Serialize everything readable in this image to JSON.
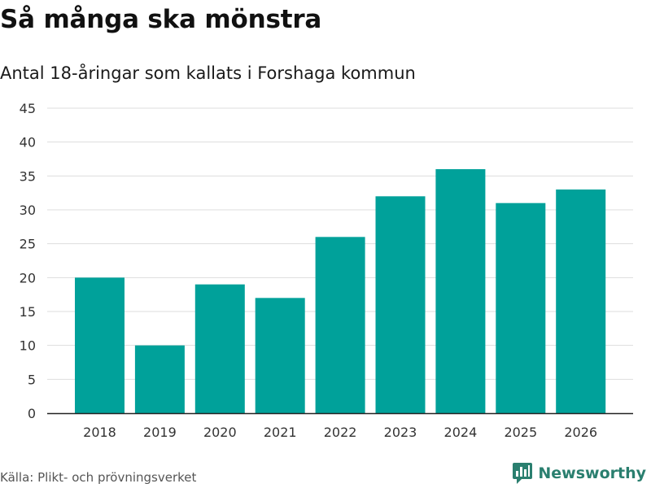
{
  "header": {
    "title": "Så många ska mönstra",
    "subtitle": "Antal 18-åringar som kallats i Forshaga kommun"
  },
  "footer": {
    "source": "Källa: Plikt- och prövningsverket",
    "brand": "Newsworthy"
  },
  "colors": {
    "bar": "#00a19a",
    "grid": "#dddddd",
    "axis": "#222222",
    "brand": "#2a7f6f"
  },
  "icons": {
    "brand_logo": "bar-chart-speech-bubble-icon"
  },
  "chart_data": {
    "type": "bar",
    "title": "Så många ska mönstra",
    "subtitle": "Antal 18-åringar som kallats i Forshaga kommun",
    "xlabel": "",
    "ylabel": "",
    "categories": [
      "2018",
      "2019",
      "2020",
      "2021",
      "2022",
      "2023",
      "2024",
      "2025",
      "2026"
    ],
    "values": [
      20,
      10,
      19,
      17,
      26,
      32,
      36,
      31,
      33
    ],
    "ylim": [
      0,
      45
    ],
    "yticks": [
      0,
      5,
      10,
      15,
      20,
      25,
      30,
      35,
      40,
      45
    ],
    "grid": true,
    "legend": "none"
  }
}
